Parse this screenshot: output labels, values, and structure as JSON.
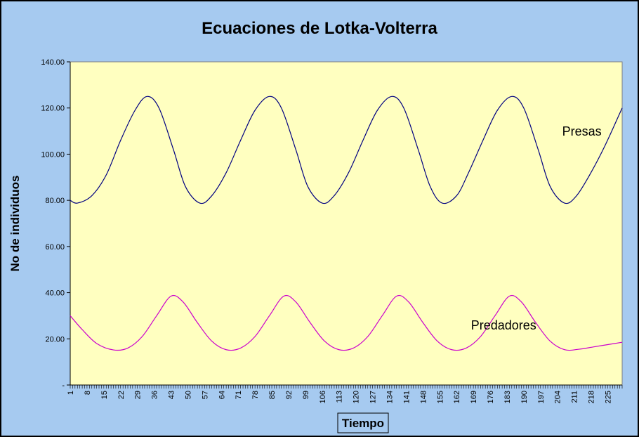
{
  "chart_data": {
    "type": "line",
    "title": "Ecuaciones de Lotka-Volterra",
    "xlabel": "Tiempo",
    "ylabel": "No de individuos",
    "ylim": [
      0,
      140
    ],
    "y_ticks": [
      "-",
      "20.00",
      "40.00",
      "60.00",
      "80.00",
      "100.00",
      "120.00",
      "140.00"
    ],
    "x_ticks": [
      "1",
      "8",
      "15",
      "22",
      "29",
      "36",
      "43",
      "50",
      "57",
      "64",
      "71",
      "78",
      "85",
      "92",
      "99",
      "106",
      "113",
      "120",
      "127",
      "134",
      "141",
      "148",
      "155",
      "162",
      "169",
      "176",
      "183",
      "190",
      "197",
      "204",
      "211",
      "218",
      "225"
    ],
    "x_range": [
      1,
      231
    ],
    "grid": false,
    "background_color": "#a6caf0",
    "plot_color": "#ffffc0",
    "series": [
      {
        "name": "Presas",
        "color": "#000080",
        "x": [
          1,
          4,
          10,
          16,
          22,
          28,
          33,
          38,
          44,
          49,
          55,
          60,
          66,
          72,
          78,
          84,
          89,
          95,
          100,
          106,
          111,
          117,
          123,
          129,
          135,
          140,
          146,
          151,
          156,
          162,
          167,
          173,
          179,
          185,
          190,
          196,
          201,
          207,
          212,
          218,
          224,
          231
        ],
        "y": [
          80,
          78.8,
          82,
          91,
          106,
          119,
          125,
          120,
          102,
          86,
          78.8,
          82,
          92,
          106,
          119,
          125,
          120,
          102,
          86,
          78.8,
          82,
          92,
          106,
          119,
          125,
          120,
          102,
          86,
          78.8,
          82,
          92,
          106,
          119,
          125,
          120,
          102,
          86,
          78.8,
          82,
          92,
          104,
          120
        ]
      },
      {
        "name": "Predadores",
        "color": "#cc00cc",
        "x": [
          1,
          6,
          12,
          19,
          25,
          31,
          37,
          43,
          48,
          54,
          60,
          66,
          72,
          78,
          84,
          90,
          95,
          101,
          107,
          113,
          119,
          125,
          131,
          137,
          142,
          148,
          154,
          160,
          166,
          172,
          178,
          184,
          189,
          195,
          201,
          207,
          213,
          219,
          225,
          231
        ],
        "y": [
          30,
          24,
          18,
          15.2,
          16,
          21,
          30,
          38.5,
          36,
          27,
          19,
          15.3,
          16,
          21,
          30,
          38.5,
          36,
          27,
          19,
          15.3,
          16,
          21,
          30,
          38.5,
          36,
          27,
          19,
          15.3,
          16,
          21,
          30,
          38.5,
          36,
          27,
          19,
          15.3,
          15.5,
          16.5,
          17.5,
          18.5
        ]
      }
    ],
    "annotations": [
      {
        "text": "Presas",
        "x": 206,
        "y": 108
      },
      {
        "text": "Predadores",
        "x": 168,
        "y": 24
      }
    ]
  }
}
